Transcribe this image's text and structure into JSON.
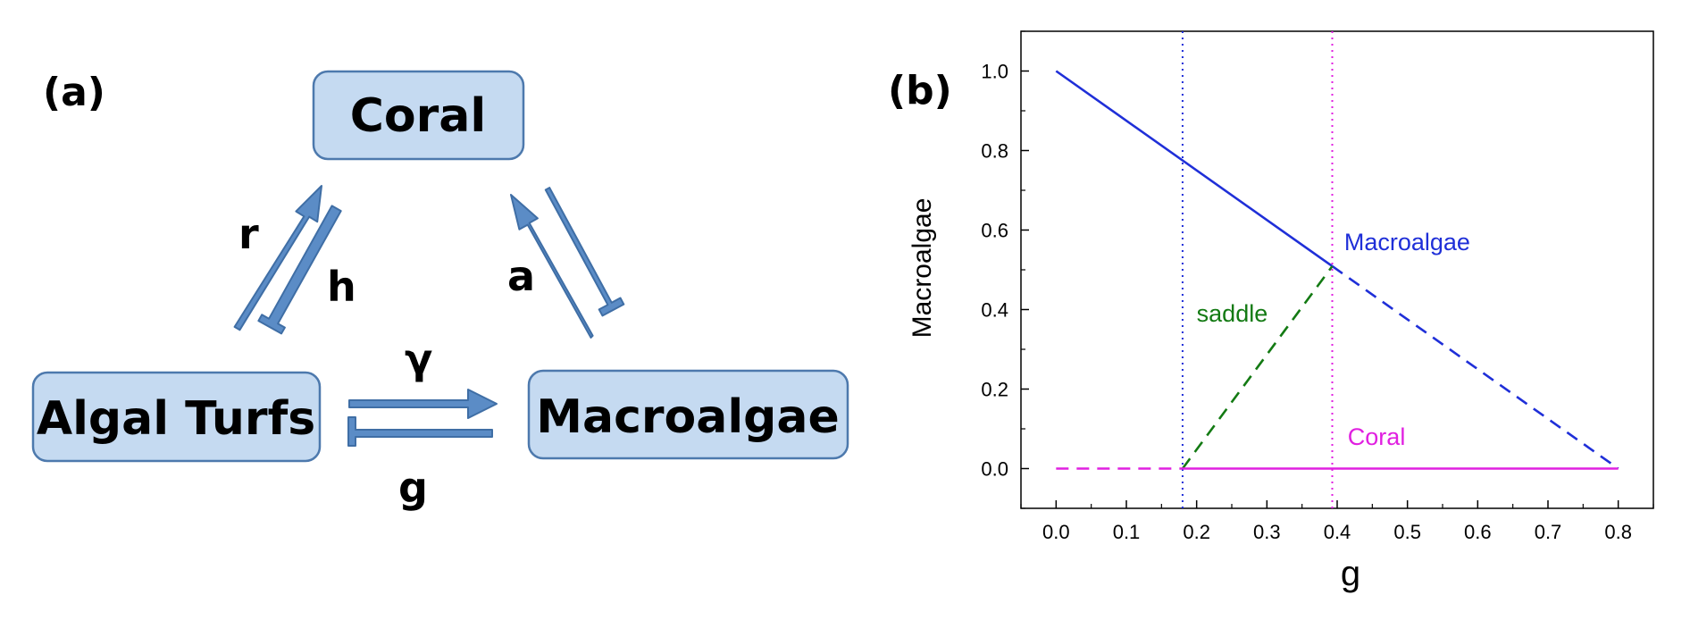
{
  "panel_a": {
    "label": "(a)",
    "nodes": {
      "coral": "Coral",
      "algal_turfs": "Algal Turfs",
      "macroalgae": "Macroalgae"
    },
    "edges": {
      "r": "r",
      "h": "h",
      "a": "a",
      "gamma": "γ",
      "g": "g"
    },
    "colors": {
      "box_fill": "#c5daf1",
      "box_border": "#4d79ad",
      "arrow": "#5b8cc6"
    }
  },
  "panel_b": {
    "label": "(b)",
    "chart_data": {
      "type": "line",
      "xlabel": "g",
      "ylabel": "Macroalgae",
      "xlim": [
        -0.05,
        0.85
      ],
      "ylim": [
        -0.1,
        1.1
      ],
      "xticks": [
        0.0,
        0.1,
        0.2,
        0.3,
        0.4,
        0.5,
        0.6,
        0.7,
        0.8
      ],
      "yticks": [
        0.0,
        0.2,
        0.4,
        0.6,
        0.8,
        1.0
      ],
      "grid": false,
      "vertical_lines": [
        {
          "x": 0.18,
          "color": "#1f2fd8",
          "style": "dotted"
        },
        {
          "x": 0.393,
          "color": "#e020e0",
          "style": "dotted"
        }
      ],
      "series": [
        {
          "label": "Macroalgae",
          "color": "#1f2fd8",
          "style": "solid",
          "x": [
            0.0,
            0.393
          ],
          "y": [
            1.0,
            0.509
          ]
        },
        {
          "color": "#1f2fd8",
          "style": "dashed",
          "x": [
            0.393,
            0.8
          ],
          "y": [
            0.509,
            0.0
          ]
        },
        {
          "label": "saddle",
          "color": "#137a13",
          "style": "dashed",
          "x": [
            0.18,
            0.393
          ],
          "y": [
            0.0,
            0.509
          ]
        },
        {
          "label": "Coral",
          "color": "#e020e0",
          "style": "solid",
          "x": [
            0.18,
            0.8
          ],
          "y": [
            0.0,
            0.0
          ]
        },
        {
          "color": "#e020e0",
          "style": "dashed",
          "x": [
            0.0,
            0.18
          ],
          "y": [
            0.0,
            0.0
          ]
        }
      ],
      "annotations": [
        {
          "text": "Macroalgae",
          "x": 0.41,
          "y": 0.55,
          "color": "#1f2fd8"
        },
        {
          "text": "saddle",
          "x": 0.2,
          "y": 0.37,
          "color": "#137a13"
        },
        {
          "text": "Coral",
          "x": 0.415,
          "y": 0.06,
          "color": "#e020e0"
        }
      ]
    }
  }
}
